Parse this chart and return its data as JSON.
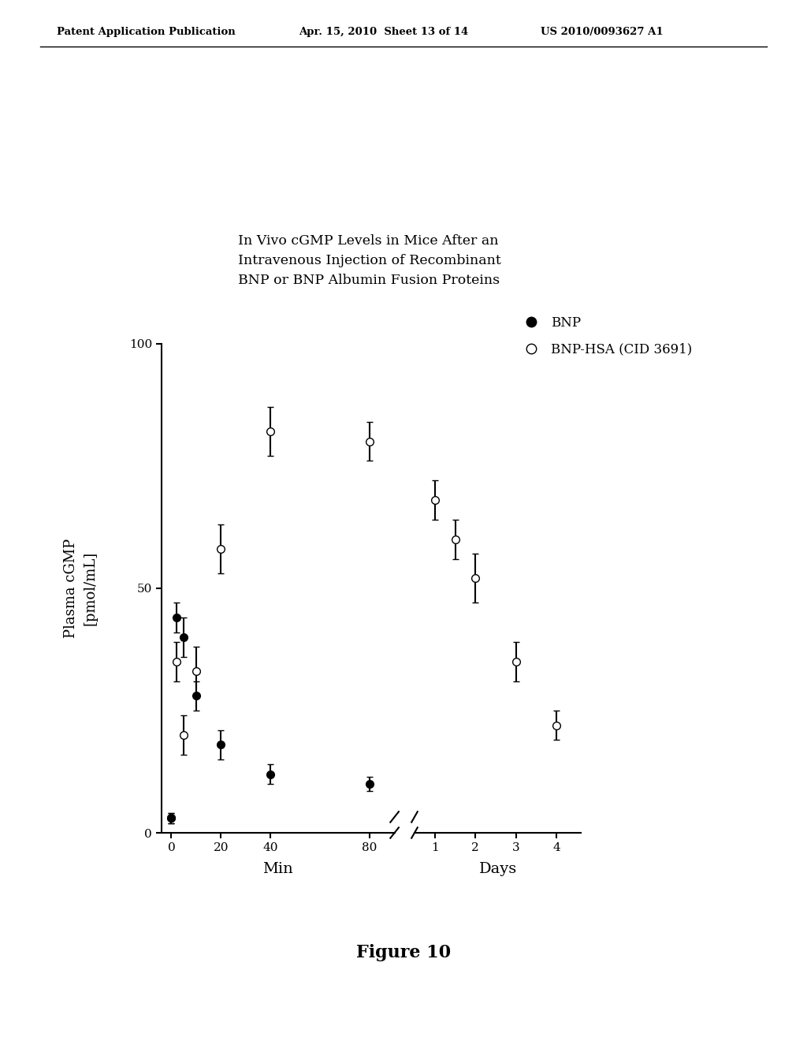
{
  "header_left": "Patent Application Publication",
  "header_mid": "Apr. 15, 2010  Sheet 13 of 14",
  "header_right": "US 2010/0093627 A1",
  "chart_title": "In Vivo cGMP Levels in Mice After an\nIntravenous Injection of Recombinant\nBNP or BNP Albumin Fusion Proteins",
  "ylabel": "Plasma cGMP\n[pmol/mL]",
  "xlabel_min": "Min",
  "xlabel_days": "Days",
  "figure_label": "Figure 10",
  "bnp_min_x": [
    0,
    2,
    5,
    10,
    20,
    40,
    80
  ],
  "bnp_min_y": [
    3,
    44,
    40,
    28,
    18,
    12,
    10
  ],
  "bnp_min_yerr": [
    1,
    3,
    4,
    3,
    3,
    2,
    1.5
  ],
  "bnp_hsa_min_x": [
    0,
    2,
    5,
    10,
    20,
    40,
    80
  ],
  "bnp_hsa_min_y": [
    3,
    35,
    20,
    33,
    58,
    82,
    80
  ],
  "bnp_hsa_min_yerr": [
    1,
    4,
    4,
    5,
    5,
    5,
    4
  ],
  "bnp_hsa_days_x": [
    1,
    1.5,
    2,
    3,
    4
  ],
  "bnp_hsa_days_y": [
    68,
    60,
    52,
    35,
    22
  ],
  "bnp_hsa_days_yerr": [
    4,
    4,
    5,
    4,
    3
  ],
  "ylim": [
    0,
    100
  ],
  "yticks": [
    0,
    50,
    100
  ],
  "min_xticks": [
    0,
    20,
    40,
    80
  ],
  "days_xticks": [
    1,
    2,
    3,
    4
  ],
  "background_color": "#ffffff",
  "line_color": "#000000",
  "marker_size": 7,
  "line_width": 1.5
}
